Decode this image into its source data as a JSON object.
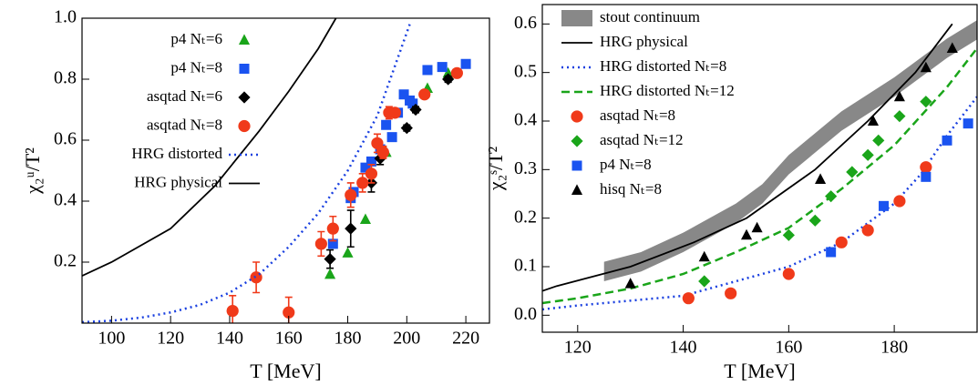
{
  "chart_data": [
    {
      "type": "scatter",
      "xlabel": "T [MeV]",
      "ylabel": "χ₂ᵘ/T²",
      "legend": "upper left",
      "xlim": [
        90,
        228
      ],
      "ylim": [
        0,
        1
      ],
      "xticks": [
        100,
        120,
        140,
        160,
        180,
        200,
        220
      ],
      "yticks": [
        0.2,
        0.4,
        0.6,
        0.8,
        {
          "value": 1,
          "label": "1.0"
        }
      ],
      "series": [
        {
          "name": "p4 Nₜ=6",
          "color": "#1aa51a",
          "marker": "triangle",
          "x": [
            174,
            180,
            186,
            193,
            207,
            214
          ],
          "values": [
            0.16,
            0.23,
            0.34,
            0.56,
            0.77,
            0.82
          ]
        },
        {
          "name": "p4 Nₜ=8",
          "color": "#1a53f0",
          "marker": "square",
          "x": [
            175,
            181,
            182,
            186,
            188,
            191,
            193,
            195,
            197,
            199,
            201,
            202,
            207,
            212,
            220
          ],
          "values": [
            0.26,
            0.41,
            0.43,
            0.51,
            0.53,
            0.57,
            0.65,
            0.61,
            0.69,
            0.75,
            0.73,
            0.72,
            0.83,
            0.84,
            0.85
          ]
        },
        {
          "name": "asqtad Nₜ=6",
          "color": "#000000",
          "marker": "diamond",
          "x": [
            174,
            181,
            188,
            191,
            200,
            203,
            214
          ],
          "values": [
            0.21,
            0.31,
            0.46,
            0.54,
            0.64,
            0.7,
            0.8
          ],
          "errors": [
            0.03,
            0.06,
            0.03,
            0.02,
            0.01,
            0.01,
            0.01
          ]
        },
        {
          "name": "asqtad Nₜ=8",
          "color": "#f03a1a",
          "marker": "circle",
          "x": [
            141,
            149,
            160,
            171,
            175,
            181,
            185,
            188,
            190,
            192,
            194,
            196,
            206,
            217
          ],
          "values": [
            0.04,
            0.15,
            0.035,
            0.26,
            0.31,
            0.42,
            0.46,
            0.49,
            0.59,
            0.56,
            0.69,
            0.69,
            0.75,
            0.82
          ],
          "errors": [
            0.05,
            0.05,
            0.05,
            0.04,
            0.04,
            0.04,
            0.03,
            0.03,
            0.03,
            0.02,
            0.02,
            0.01,
            0.01,
            0.01
          ]
        },
        {
          "name": "HRG distorted",
          "color": "#1a40e0",
          "dash": "dotted",
          "x": [
            90,
            100,
            110,
            120,
            130,
            140,
            150,
            160,
            170,
            180,
            190,
            201
          ],
          "values": [
            0.003,
            0.008,
            0.018,
            0.035,
            0.06,
            0.1,
            0.16,
            0.25,
            0.36,
            0.5,
            0.68,
            0.98
          ]
        },
        {
          "name": "HRG physical",
          "color": "#000000",
          "x": [
            90,
            100,
            120,
            135,
            150,
            160,
            170,
            176
          ],
          "values": [
            0.155,
            0.2,
            0.31,
            0.45,
            0.63,
            0.76,
            0.9,
            1.0
          ]
        }
      ]
    },
    {
      "type": "scatter",
      "xlabel": "T [MeV]",
      "ylabel": "χ₂ˢ/T²",
      "legend": "upper left",
      "xlim": [
        113.3,
        195.7
      ],
      "ylim": [
        -0.035,
        0.64
      ],
      "xticks": [
        120,
        140,
        160,
        180
      ],
      "yticks": [
        {
          "value": 0,
          "label": "0.0"
        },
        0.1,
        0.2,
        0.3,
        0.4,
        0.5,
        0.6
      ],
      "series": [
        {
          "name": "stout continuum",
          "color": "#888888",
          "x": [
            125,
            132,
            140,
            150,
            155,
            160,
            170,
            180,
            190,
            196
          ],
          "lower": [
            0.07,
            0.09,
            0.13,
            0.19,
            0.23,
            0.29,
            0.38,
            0.45,
            0.53,
            0.57
          ],
          "upper": [
            0.11,
            0.13,
            0.17,
            0.23,
            0.27,
            0.33,
            0.42,
            0.49,
            0.57,
            0.61
          ]
        },
        {
          "name": "HRG physical",
          "color": "#000000",
          "x": [
            113.3,
            116,
            130,
            142,
            152,
            165,
            175,
            184,
            191
          ],
          "values": [
            0.05,
            0.06,
            0.1,
            0.15,
            0.2,
            0.3,
            0.4,
            0.5,
            0.6
          ]
        },
        {
          "name": "HRG distorted Nₜ=8",
          "color": "#1a40e0",
          "dash": "dotted",
          "x": [
            113.3,
            120,
            130,
            140,
            150,
            160,
            170,
            180,
            185,
            190,
            195.7
          ],
          "values": [
            0.012,
            0.02,
            0.03,
            0.04,
            0.07,
            0.1,
            0.15,
            0.23,
            0.29,
            0.37,
            0.45
          ]
        },
        {
          "name": "HRG distorted Nₜ=12",
          "color": "#1aa51a",
          "dash": "dashed",
          "x": [
            113.3,
            120,
            130,
            140,
            150,
            160,
            170,
            180,
            190,
            195.7
          ],
          "values": [
            0.025,
            0.035,
            0.055,
            0.085,
            0.13,
            0.18,
            0.26,
            0.35,
            0.47,
            0.55
          ]
        },
        {
          "name": "asqtad Nₜ=8",
          "color": "#f03a1a",
          "marker": "circle",
          "x": [
            141,
            149,
            160,
            170,
            175,
            181,
            186
          ],
          "values": [
            0.035,
            0.045,
            0.085,
            0.15,
            0.175,
            0.235,
            0.305
          ]
        },
        {
          "name": "asqtad Nₜ=12",
          "color": "#1aa51a",
          "marker": "diamond",
          "x": [
            144,
            160,
            165,
            168,
            172,
            175,
            177,
            181,
            186
          ],
          "values": [
            0.07,
            0.165,
            0.195,
            0.245,
            0.295,
            0.33,
            0.36,
            0.41,
            0.44
          ]
        },
        {
          "name": "p4 Nₜ=8",
          "color": "#1a53f0",
          "marker": "square",
          "x": [
            168,
            178,
            186,
            190,
            194
          ],
          "values": [
            0.13,
            0.225,
            0.285,
            0.36,
            0.395
          ]
        },
        {
          "name": "hisq Nₜ=8",
          "color": "#000000",
          "marker": "triangle",
          "x": [
            130,
            144,
            152,
            154,
            166,
            176,
            181,
            186,
            191
          ],
          "values": [
            0.065,
            0.12,
            0.165,
            0.18,
            0.28,
            0.4,
            0.45,
            0.51,
            0.55
          ]
        }
      ]
    }
  ]
}
